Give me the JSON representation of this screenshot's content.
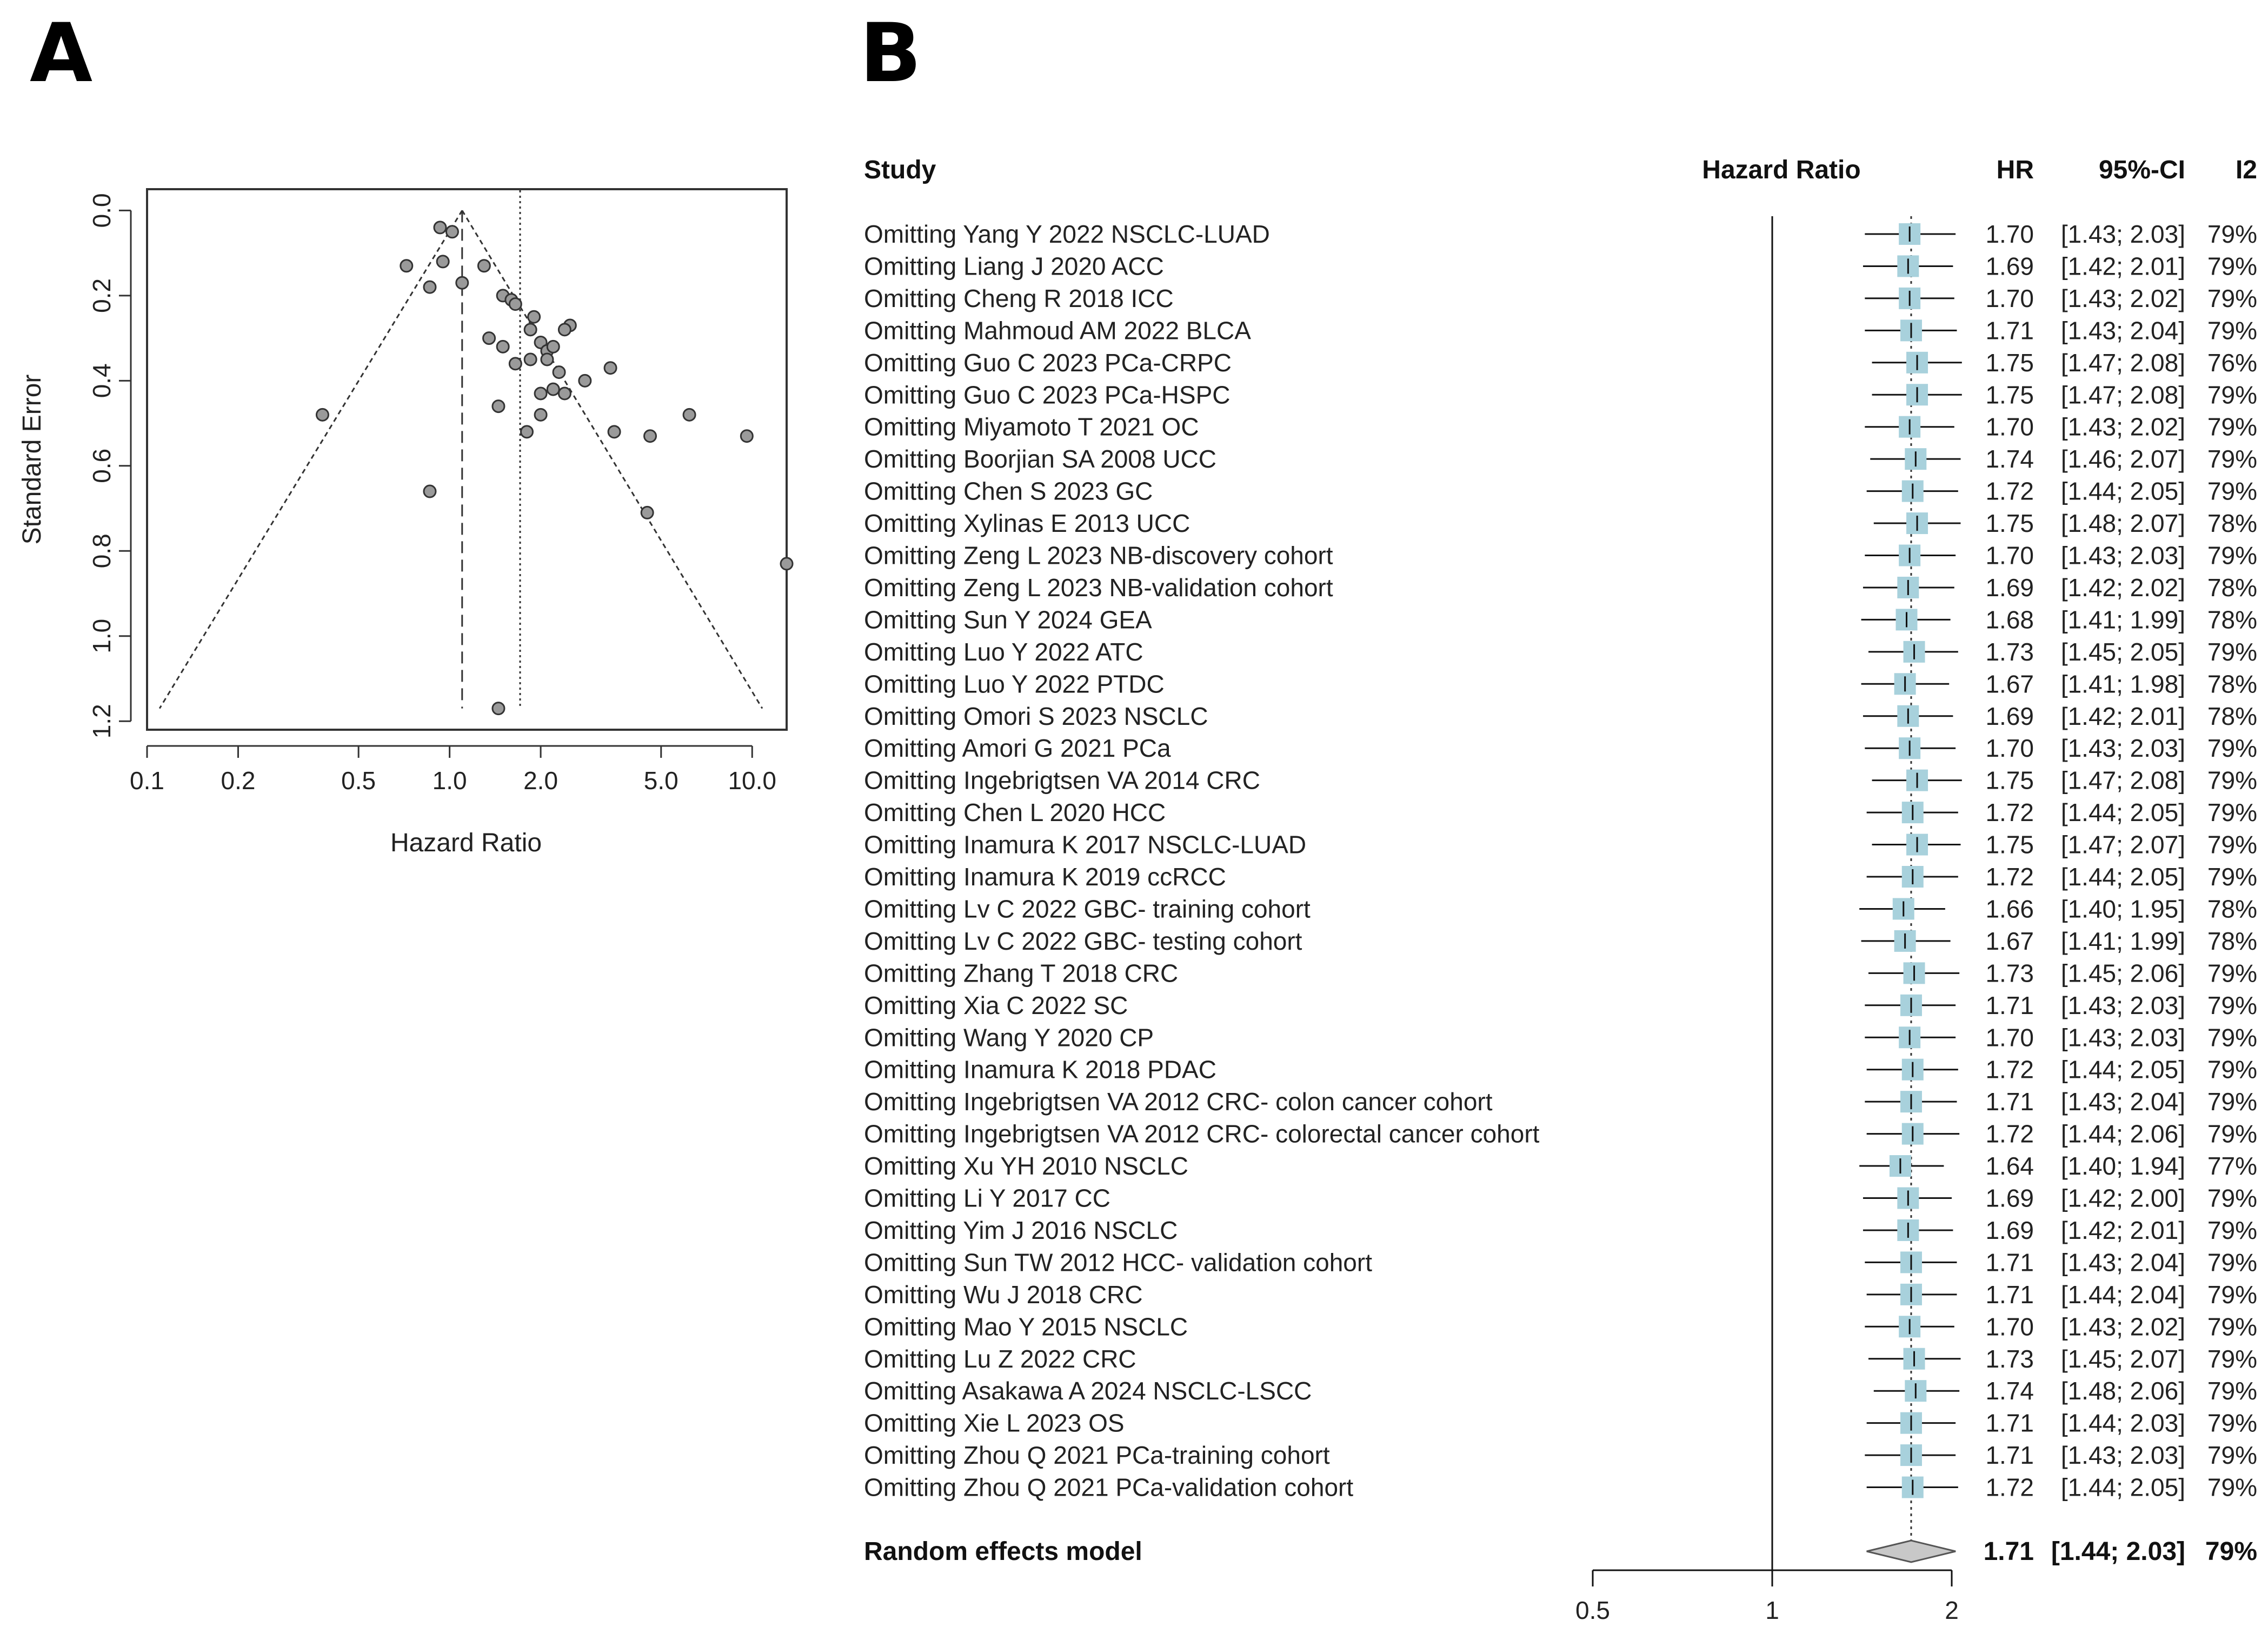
{
  "chart_data": [
    {
      "panel": "A",
      "type": "scatter",
      "xlabel": "Hazard Ratio",
      "ylabel": "Standard Error",
      "x_scale": "log",
      "y_reversed": true,
      "xlim": [
        0.1,
        13
      ],
      "ylim": [
        0.0,
        1.2
      ],
      "x_ticks": [
        "0.1",
        "0.2",
        "0.5",
        "1.0",
        "2.0",
        "5.0",
        "10.0"
      ],
      "y_ticks": [
        "0.0",
        "0.2",
        "0.4",
        "0.6",
        "0.8",
        "1.0",
        "1.2"
      ],
      "funnel_center_hr": 1.1,
      "pooled_hr": 1.71,
      "funnel_apex": [
        1.1,
        0.0
      ],
      "funnel_left_bottom": [
        0.11,
        1.17
      ],
      "funnel_right_bottom": [
        10.8,
        1.17
      ],
      "points": [
        [
          0.93,
          0.04
        ],
        [
          1.02,
          0.05
        ],
        [
          0.95,
          0.12
        ],
        [
          0.72,
          0.13
        ],
        [
          1.3,
          0.13
        ],
        [
          0.86,
          0.18
        ],
        [
          1.1,
          0.17
        ],
        [
          1.5,
          0.2
        ],
        [
          1.6,
          0.21
        ],
        [
          1.65,
          0.22
        ],
        [
          1.9,
          0.25
        ],
        [
          1.85,
          0.28
        ],
        [
          2.5,
          0.27
        ],
        [
          2.4,
          0.28
        ],
        [
          2.0,
          0.31
        ],
        [
          1.35,
          0.3
        ],
        [
          1.5,
          0.32
        ],
        [
          2.1,
          0.33
        ],
        [
          2.2,
          0.32
        ],
        [
          2.1,
          0.35
        ],
        [
          1.65,
          0.36
        ],
        [
          1.85,
          0.35
        ],
        [
          2.3,
          0.38
        ],
        [
          3.4,
          0.37
        ],
        [
          2.8,
          0.4
        ],
        [
          2.2,
          0.42
        ],
        [
          2.0,
          0.43
        ],
        [
          2.4,
          0.43
        ],
        [
          1.45,
          0.46
        ],
        [
          2.0,
          0.48
        ],
        [
          0.38,
          0.48
        ],
        [
          6.2,
          0.48
        ],
        [
          3.5,
          0.52
        ],
        [
          1.8,
          0.52
        ],
        [
          4.6,
          0.53
        ],
        [
          9.6,
          0.53
        ],
        [
          0.86,
          0.66
        ],
        [
          4.5,
          0.71
        ],
        [
          13.0,
          0.83
        ],
        [
          1.45,
          1.17
        ]
      ]
    },
    {
      "panel": "B",
      "type": "forest",
      "headers": {
        "study": "Study",
        "hr_axis": "Hazard Ratio",
        "hr": "HR",
        "ci": "95%-CI",
        "i2": "I2"
      },
      "x_scale": "log",
      "xlim": [
        0.5,
        2
      ],
      "x_ticks": [
        "0.5",
        "1",
        "2"
      ],
      "null_line": 1,
      "studies": [
        {
          "label": "Omitting Yang Y 2022 NSCLC-LUAD",
          "hr": 1.7,
          "lo": 1.43,
          "hi": 2.03,
          "hr_t": "1.70",
          "ci_t": "[1.43; 2.03]",
          "i2_t": "79%"
        },
        {
          "label": "Omitting Liang J 2020 ACC",
          "hr": 1.69,
          "lo": 1.42,
          "hi": 2.01,
          "hr_t": "1.69",
          "ci_t": "[1.42; 2.01]",
          "i2_t": "79%"
        },
        {
          "label": "Omitting Cheng R 2018 ICC",
          "hr": 1.7,
          "lo": 1.43,
          "hi": 2.02,
          "hr_t": "1.70",
          "ci_t": "[1.43; 2.02]",
          "i2_t": "79%"
        },
        {
          "label": "Omitting Mahmoud AM 2022 BLCA",
          "hr": 1.71,
          "lo": 1.43,
          "hi": 2.04,
          "hr_t": "1.71",
          "ci_t": "[1.43; 2.04]",
          "i2_t": "79%"
        },
        {
          "label": "Omitting Guo C 2023 PCa-CRPC",
          "hr": 1.75,
          "lo": 1.47,
          "hi": 2.08,
          "hr_t": "1.75",
          "ci_t": "[1.47; 2.08]",
          "i2_t": "76%"
        },
        {
          "label": "Omitting Guo C 2023 PCa-HSPC",
          "hr": 1.75,
          "lo": 1.47,
          "hi": 2.08,
          "hr_t": "1.75",
          "ci_t": "[1.47; 2.08]",
          "i2_t": "79%"
        },
        {
          "label": "Omitting Miyamoto T 2021 OC",
          "hr": 1.7,
          "lo": 1.43,
          "hi": 2.02,
          "hr_t": "1.70",
          "ci_t": "[1.43; 2.02]",
          "i2_t": "79%"
        },
        {
          "label": "Omitting Boorjian SA 2008 UCC",
          "hr": 1.74,
          "lo": 1.46,
          "hi": 2.07,
          "hr_t": "1.74",
          "ci_t": "[1.46; 2.07]",
          "i2_t": "79%"
        },
        {
          "label": "Omitting Chen S 2023 GC",
          "hr": 1.72,
          "lo": 1.44,
          "hi": 2.05,
          "hr_t": "1.72",
          "ci_t": "[1.44; 2.05]",
          "i2_t": "79%"
        },
        {
          "label": "Omitting Xylinas E 2013 UCC",
          "hr": 1.75,
          "lo": 1.48,
          "hi": 2.07,
          "hr_t": "1.75",
          "ci_t": "[1.48; 2.07]",
          "i2_t": "78%"
        },
        {
          "label": "Omitting Zeng L 2023 NB-discovery cohort",
          "hr": 1.7,
          "lo": 1.43,
          "hi": 2.03,
          "hr_t": "1.70",
          "ci_t": "[1.43; 2.03]",
          "i2_t": "79%"
        },
        {
          "label": "Omitting Zeng L 2023 NB-validation cohort",
          "hr": 1.69,
          "lo": 1.42,
          "hi": 2.02,
          "hr_t": "1.69",
          "ci_t": "[1.42; 2.02]",
          "i2_t": "78%"
        },
        {
          "label": "Omitting Sun Y 2024 GEA",
          "hr": 1.68,
          "lo": 1.41,
          "hi": 1.99,
          "hr_t": "1.68",
          "ci_t": "[1.41; 1.99]",
          "i2_t": "78%"
        },
        {
          "label": "Omitting Luo Y 2022 ATC",
          "hr": 1.73,
          "lo": 1.45,
          "hi": 2.05,
          "hr_t": "1.73",
          "ci_t": "[1.45; 2.05]",
          "i2_t": "79%"
        },
        {
          "label": "Omitting Luo Y 2022 PTDC",
          "hr": 1.67,
          "lo": 1.41,
          "hi": 1.98,
          "hr_t": "1.67",
          "ci_t": "[1.41; 1.98]",
          "i2_t": "78%"
        },
        {
          "label": "Omitting Omori S 2023 NSCLC",
          "hr": 1.69,
          "lo": 1.42,
          "hi": 2.01,
          "hr_t": "1.69",
          "ci_t": "[1.42; 2.01]",
          "i2_t": "78%"
        },
        {
          "label": "Omitting Amori G 2021 PCa",
          "hr": 1.7,
          "lo": 1.43,
          "hi": 2.03,
          "hr_t": "1.70",
          "ci_t": "[1.43; 2.03]",
          "i2_t": "79%"
        },
        {
          "label": "Omitting Ingebrigtsen VA 2014 CRC",
          "hr": 1.75,
          "lo": 1.47,
          "hi": 2.08,
          "hr_t": "1.75",
          "ci_t": "[1.47; 2.08]",
          "i2_t": "79%"
        },
        {
          "label": "Omitting Chen L 2020 HCC",
          "hr": 1.72,
          "lo": 1.44,
          "hi": 2.05,
          "hr_t": "1.72",
          "ci_t": "[1.44; 2.05]",
          "i2_t": "79%"
        },
        {
          "label": "Omitting Inamura K 2017 NSCLC-LUAD",
          "hr": 1.75,
          "lo": 1.47,
          "hi": 2.07,
          "hr_t": "1.75",
          "ci_t": "[1.47; 2.07]",
          "i2_t": "79%"
        },
        {
          "label": "Omitting Inamura K 2019 ccRCC",
          "hr": 1.72,
          "lo": 1.44,
          "hi": 2.05,
          "hr_t": "1.72",
          "ci_t": "[1.44; 2.05]",
          "i2_t": "79%"
        },
        {
          "label": "Omitting Lv C 2022 GBC- training cohort",
          "hr": 1.66,
          "lo": 1.4,
          "hi": 1.95,
          "hr_t": "1.66",
          "ci_t": "[1.40; 1.95]",
          "i2_t": "78%"
        },
        {
          "label": "Omitting Lv C 2022 GBC- testing cohort",
          "hr": 1.67,
          "lo": 1.41,
          "hi": 1.99,
          "hr_t": "1.67",
          "ci_t": "[1.41; 1.99]",
          "i2_t": "78%"
        },
        {
          "label": "Omitting Zhang T 2018 CRC",
          "hr": 1.73,
          "lo": 1.45,
          "hi": 2.06,
          "hr_t": "1.73",
          "ci_t": "[1.45; 2.06]",
          "i2_t": "79%"
        },
        {
          "label": "Omitting Xia C 2022 SC",
          "hr": 1.71,
          "lo": 1.43,
          "hi": 2.03,
          "hr_t": "1.71",
          "ci_t": "[1.43; 2.03]",
          "i2_t": "79%"
        },
        {
          "label": "Omitting Wang Y 2020 CP",
          "hr": 1.7,
          "lo": 1.43,
          "hi": 2.03,
          "hr_t": "1.70",
          "ci_t": "[1.43; 2.03]",
          "i2_t": "79%"
        },
        {
          "label": "Omitting Inamura K 2018 PDAC",
          "hr": 1.72,
          "lo": 1.44,
          "hi": 2.05,
          "hr_t": "1.72",
          "ci_t": "[1.44; 2.05]",
          "i2_t": "79%"
        },
        {
          "label": "Omitting Ingebrigtsen VA 2012 CRC- colon cancer cohort",
          "hr": 1.71,
          "lo": 1.43,
          "hi": 2.04,
          "hr_t": "1.71",
          "ci_t": "[1.43; 2.04]",
          "i2_t": "79%"
        },
        {
          "label": "Omitting Ingebrigtsen VA 2012 CRC- colorectal cancer cohort",
          "hr": 1.72,
          "lo": 1.44,
          "hi": 2.06,
          "hr_t": "1.72",
          "ci_t": "[1.44; 2.06]",
          "i2_t": "79%"
        },
        {
          "label": "Omitting Xu YH 2010 NSCLC",
          "hr": 1.64,
          "lo": 1.4,
          "hi": 1.94,
          "hr_t": "1.64",
          "ci_t": "[1.40; 1.94]",
          "i2_t": "77%"
        },
        {
          "label": "Omitting Li Y 2017 CC",
          "hr": 1.69,
          "lo": 1.42,
          "hi": 2.0,
          "hr_t": "1.69",
          "ci_t": "[1.42; 2.00]",
          "i2_t": "79%"
        },
        {
          "label": "Omitting Yim J 2016 NSCLC",
          "hr": 1.69,
          "lo": 1.42,
          "hi": 2.01,
          "hr_t": "1.69",
          "ci_t": "[1.42; 2.01]",
          "i2_t": "79%"
        },
        {
          "label": "Omitting Sun TW 2012 HCC- validation cohort",
          "hr": 1.71,
          "lo": 1.43,
          "hi": 2.04,
          "hr_t": "1.71",
          "ci_t": "[1.43; 2.04]",
          "i2_t": "79%"
        },
        {
          "label": "Omitting Wu J 2018 CRC",
          "hr": 1.71,
          "lo": 1.44,
          "hi": 2.04,
          "hr_t": "1.71",
          "ci_t": "[1.44; 2.04]",
          "i2_t": "79%"
        },
        {
          "label": "Omitting Mao Y 2015 NSCLC",
          "hr": 1.7,
          "lo": 1.43,
          "hi": 2.02,
          "hr_t": "1.70",
          "ci_t": "[1.43; 2.02]",
          "i2_t": "79%"
        },
        {
          "label": "Omitting Lu Z 2022 CRC",
          "hr": 1.73,
          "lo": 1.45,
          "hi": 2.07,
          "hr_t": "1.73",
          "ci_t": "[1.45; 2.07]",
          "i2_t": "79%"
        },
        {
          "label": "Omitting Asakawa A 2024 NSCLC-LSCC",
          "hr": 1.74,
          "lo": 1.48,
          "hi": 2.06,
          "hr_t": "1.74",
          "ci_t": "[1.48; 2.06]",
          "i2_t": "79%"
        },
        {
          "label": "Omitting Xie L 2023 OS",
          "hr": 1.71,
          "lo": 1.44,
          "hi": 2.03,
          "hr_t": "1.71",
          "ci_t": "[1.44; 2.03]",
          "i2_t": "79%"
        },
        {
          "label": "Omitting Zhou Q 2021 PCa-training cohort",
          "hr": 1.71,
          "lo": 1.43,
          "hi": 2.03,
          "hr_t": "1.71",
          "ci_t": "[1.43; 2.03]",
          "i2_t": "79%"
        },
        {
          "label": "Omitting Zhou Q 2021 PCa-validation cohort",
          "hr": 1.72,
          "lo": 1.44,
          "hi": 2.05,
          "hr_t": "1.72",
          "ci_t": "[1.44; 2.05]",
          "i2_t": "79%"
        }
      ],
      "summary": {
        "label": "Random effects model",
        "hr": 1.71,
        "lo": 1.44,
        "hi": 2.03,
        "hr_t": "1.71",
        "ci_t": "[1.44; 2.03]",
        "i2_t": "79%"
      },
      "colors": {
        "box": "#a8d1dc",
        "diamond": "#c8c8c8"
      }
    }
  ],
  "panel_labels": {
    "a": "A",
    "b": "B"
  }
}
